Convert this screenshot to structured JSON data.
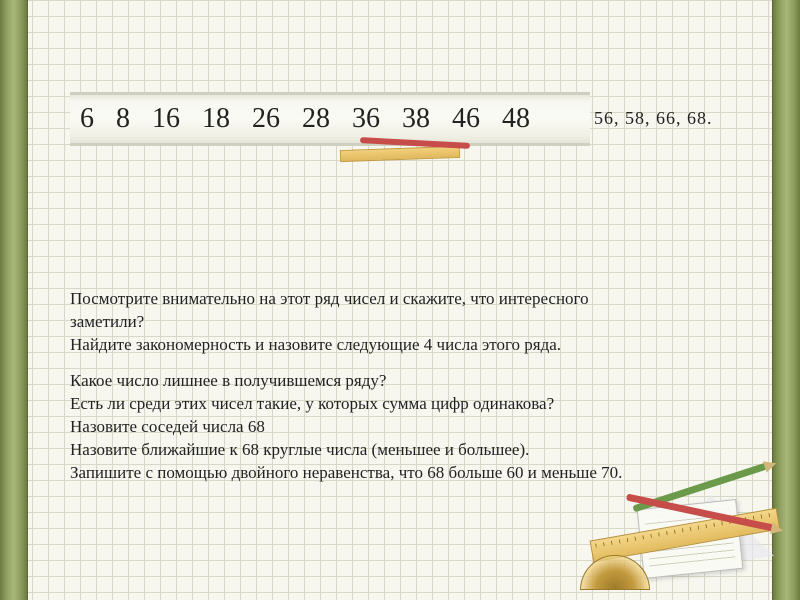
{
  "colors": {
    "background": "#f7f7f0",
    "grid_line": "#d8d8c8",
    "border_gradient": [
      "#6b7a3f",
      "#8a9a5a",
      "#a8b87a"
    ],
    "strip_bg": [
      "#e8e8de",
      "#fafaf4",
      "#e4e4d8"
    ],
    "text": "#222222",
    "ruler": "#e2bb5e",
    "pencil_red": "#c74d4a",
    "pencil_green": "#6b9a4a"
  },
  "number_strip": {
    "values": [
      "6",
      "8",
      "16",
      "18",
      "26",
      "28",
      "36",
      "38",
      "46",
      "48"
    ],
    "font_size": 28
  },
  "extra_numbers": "56,  58,  66,  68.",
  "paragraph1": {
    "line1": "Посмотрите внимательно на этот ряд чисел и скажите, что интересного",
    "line2": "заметили?",
    "line3": "Найдите закономерность и назовите следующие 4 числа этого ряда."
  },
  "paragraph2": {
    "line1": "Какое число лишнее в получившемся ряду?",
    "line2": " Есть ли среди этих чисел такие, у которых сумма цифр одинакова?",
    "line3": " Назовите соседей числа 68",
    "line4": " Назовите ближайшие к 68 круглые числа (меньшее и большее).",
    "line5": "Запишите с помощью двойного неравенства, что 68 больше 60 и меньше 70."
  },
  "typography": {
    "body_font": "Times New Roman",
    "body_size": 17,
    "strip_size": 28,
    "extra_size": 18
  }
}
